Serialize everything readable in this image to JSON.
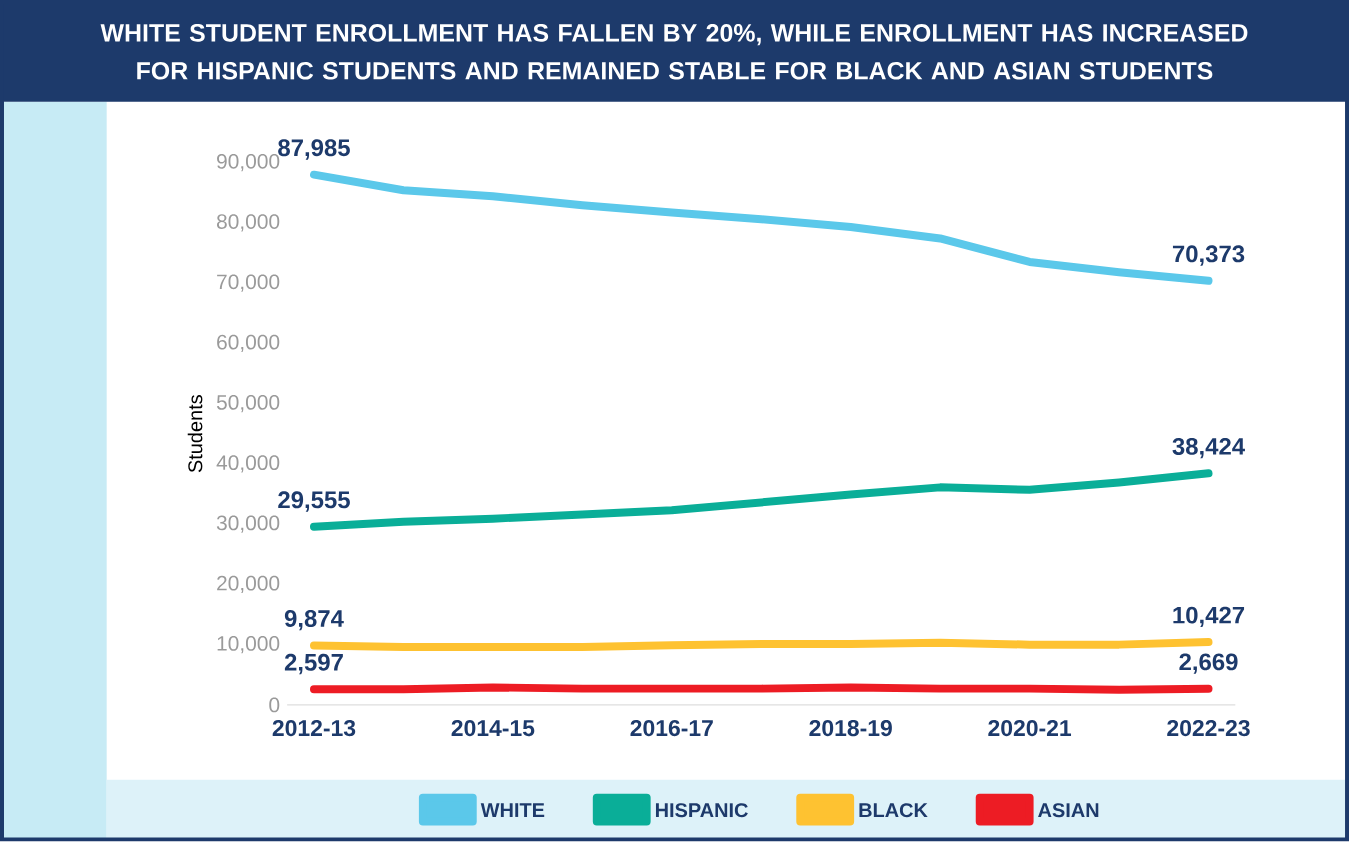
{
  "chart_data": {
    "type": "line",
    "title": "WHITE STUDENT ENROLLMENT HAS FALLEN BY 20%, WHILE ENROLLMENT HAS INCREASED FOR HISPANIC STUDENTS AND REMAINED STABLE FOR BLACK AND ASIAN STUDENTS",
    "ylabel": "Students",
    "categories": [
      "2012-13",
      null,
      "2014-15",
      null,
      "2016-17",
      null,
      "2018-19",
      null,
      "2020-21",
      null,
      "2022-23"
    ],
    "series": [
      {
        "name": "WHITE",
        "color": "#5bc8ea",
        "values": [
          87985,
          85400,
          84400,
          82900,
          81700,
          80600,
          79300,
          77400,
          73500,
          71800,
          70373
        ],
        "value_labels": [
          "87,985",
          null,
          null,
          null,
          null,
          null,
          null,
          null,
          null,
          null,
          "70,373"
        ]
      },
      {
        "name": "HISPANIC",
        "color": "#0aae98",
        "values": [
          29555,
          30400,
          30900,
          31600,
          32300,
          33600,
          34900,
          36100,
          35700,
          36900,
          38424
        ],
        "value_labels": [
          "29,555",
          null,
          null,
          null,
          null,
          null,
          null,
          null,
          null,
          null,
          "38,424"
        ]
      },
      {
        "name": "BLACK",
        "color": "#fec231",
        "values": [
          9874,
          9600,
          9600,
          9600,
          9900,
          10100,
          10100,
          10300,
          10000,
          10000,
          10427
        ],
        "value_labels": [
          "9,874",
          null,
          null,
          null,
          null,
          null,
          null,
          null,
          null,
          null,
          "10,427"
        ]
      },
      {
        "name": "ASIAN",
        "color": "#ed1c24",
        "values": [
          2597,
          2597,
          2900,
          2700,
          2700,
          2700,
          2900,
          2700,
          2700,
          2500,
          2669
        ],
        "value_labels": [
          "2,597",
          null,
          null,
          null,
          null,
          null,
          null,
          null,
          null,
          null,
          "2,669"
        ]
      }
    ],
    "ylim": [
      0,
      90000
    ],
    "yticks": [
      {
        "value": 0,
        "label": "0"
      },
      {
        "value": 10000,
        "label": "10,000"
      },
      {
        "value": 20000,
        "label": "20,000"
      },
      {
        "value": 30000,
        "label": "30,000"
      },
      {
        "value": 40000,
        "label": "40,000"
      },
      {
        "value": 50000,
        "label": "50,000"
      },
      {
        "value": 60000,
        "label": "60,000"
      },
      {
        "value": 70000,
        "label": "70,000"
      },
      {
        "value": 80000,
        "label": "80,000"
      },
      {
        "value": 90000,
        "label": "90,000"
      }
    ],
    "legend": "bottom",
    "grid": false,
    "marker": "none",
    "line_style": "solid"
  }
}
